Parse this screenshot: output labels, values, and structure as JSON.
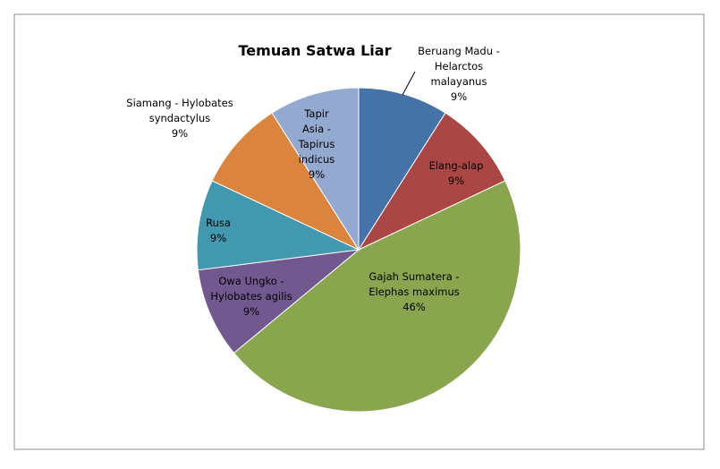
{
  "chart_data": {
    "type": "pie",
    "title": "Temuan Satwa Liar",
    "slices": [
      {
        "label": "Beruang Madu - Helarctos malayanus",
        "label_lines": [
          "Beruang Madu -",
          "Helarctos",
          "malayanus"
        ],
        "value": 9,
        "value_label": "9%",
        "color": "#4572a7"
      },
      {
        "label": "Elang-alap",
        "label_lines": [
          "Elang-alap"
        ],
        "value": 9,
        "value_label": "9%",
        "color": "#aa4643"
      },
      {
        "label": "Gajah Sumatera - Elephas maximus",
        "label_lines": [
          "Gajah Sumatera -",
          "Elephas maximus"
        ],
        "value": 46,
        "value_label": "46%",
        "color": "#89a54e"
      },
      {
        "label": "Owa Ungko - Hylobates agilis",
        "label_lines": [
          "Owa Ungko -",
          "Hylobates agilis"
        ],
        "value": 9,
        "value_label": "9%",
        "color": "#71588f"
      },
      {
        "label": "Rusa",
        "label_lines": [
          "Rusa"
        ],
        "value": 9,
        "value_label": "9%",
        "color": "#4198af"
      },
      {
        "label": "Siamang - Hylobates syndactylus",
        "label_lines": [
          "Siamang - Hylobates",
          "syndactylus"
        ],
        "value": 9,
        "value_label": "9%",
        "color": "#db843d"
      },
      {
        "label": "Tapir Asia - Tapirus indicus",
        "label_lines": [
          "Tapir",
          "Asia -",
          "Tapirus",
          "indicus"
        ],
        "value": 9,
        "value_label": "9%",
        "color": "#93a9cf"
      }
    ],
    "legend": "none"
  }
}
